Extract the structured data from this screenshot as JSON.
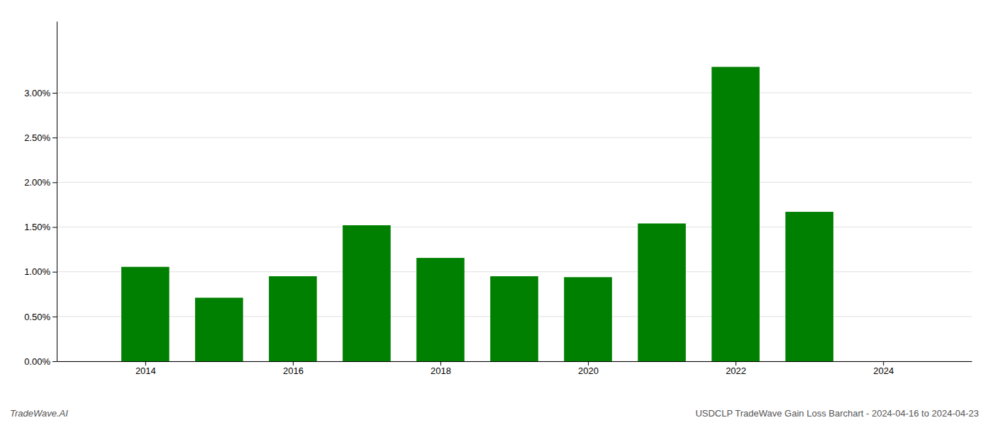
{
  "chart_data": {
    "type": "bar",
    "title": "USDCLP TradeWave Gain Loss Barchart - 2024-04-16 to 2024-04-23",
    "annotations": [
      "TradeWave.AI"
    ],
    "x": [
      2014,
      2015,
      2016,
      2017,
      2018,
      2019,
      2020,
      2021,
      2022,
      2023
    ],
    "values": [
      0.01055,
      0.0071,
      0.0095,
      0.0152,
      0.01155,
      0.0095,
      0.0094,
      0.0154,
      0.0329,
      0.0167
    ],
    "color": "#008000",
    "xlim": [
      2012.8,
      2025.2
    ],
    "xticks": [
      2014,
      2016,
      2018,
      2020,
      2022,
      2024
    ],
    "ylim": [
      0.0,
      0.038
    ],
    "yticks": [
      {
        "value": 0.0,
        "label": "0.00%"
      },
      {
        "value": 0.005,
        "label": "0.50%"
      },
      {
        "value": 0.01,
        "label": "1.00%"
      },
      {
        "value": 0.015,
        "label": "1.50%"
      },
      {
        "value": 0.02,
        "label": "2.00%"
      },
      {
        "value": 0.025,
        "label": "2.50%"
      },
      {
        "value": 0.03,
        "label": "3.00%"
      }
    ],
    "grid": true
  }
}
